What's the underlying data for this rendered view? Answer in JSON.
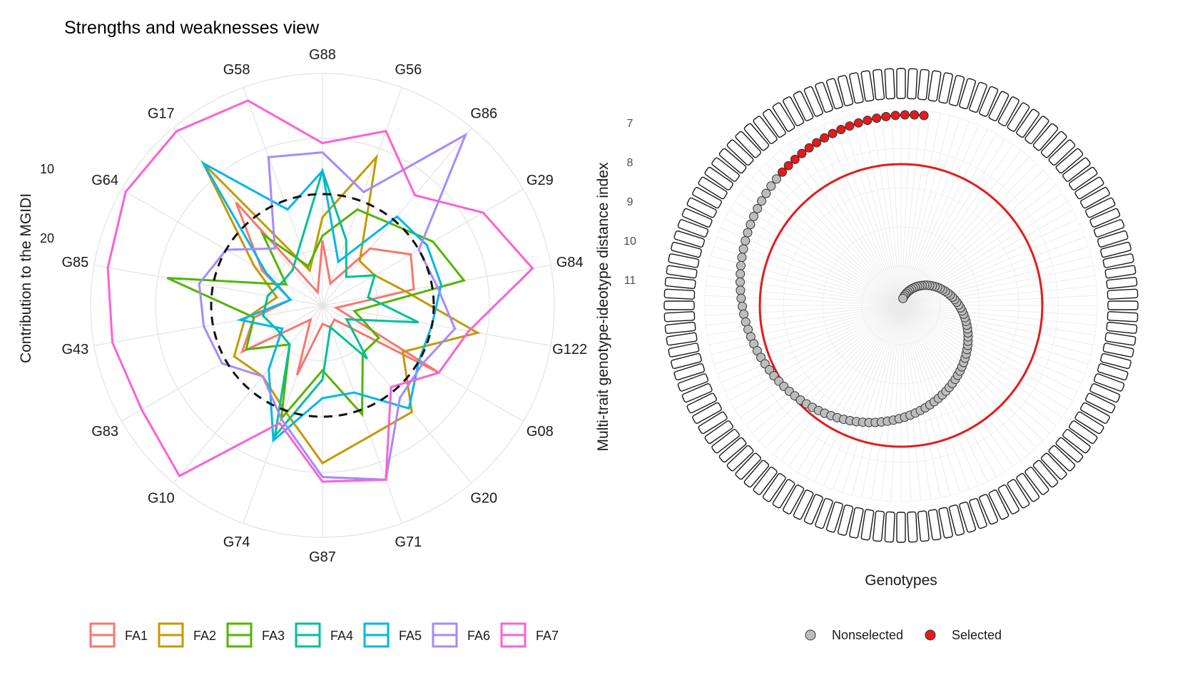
{
  "left_chart": {
    "title": "Strengths and weaknesses view",
    "ylabel": "Contribution to the MGIDI",
    "radial_ticks": [
      "10",
      "20"
    ]
  },
  "right_chart": {
    "xlabel": "Genotypes",
    "ylabel": "Multi-trait genotype-ideotype distance index",
    "radial_ticks": [
      "7",
      "8",
      "9",
      "10",
      "11"
    ],
    "legend": {
      "nonselected": "Nonselected",
      "selected": "Selected"
    }
  },
  "chart_data": [
    {
      "type": "radar",
      "title": "Strengths and weaknesses view",
      "ylabel": "Contribution to the MGIDI",
      "radial_ticks": [
        10,
        20
      ],
      "categories": [
        "G88",
        "G56",
        "G86",
        "G29",
        "G84",
        "G122",
        "G08",
        "G20",
        "G71",
        "G87",
        "G74",
        "G10",
        "G83",
        "G43",
        "G85",
        "G64",
        "G17",
        "G58"
      ],
      "series": [
        {
          "name": "FA1",
          "color": "#F8766D",
          "values": [
            0.28,
            0.1,
            0.32,
            0.44,
            0.4,
            0.06,
            0.58,
            0.08,
            0.1,
            0.08,
            0.32,
            0.08,
            0.4,
            0.3,
            0.14,
            0.3,
            0.58,
            0.06
          ]
        },
        {
          "name": "FA2",
          "color": "#C49A00",
          "values": [
            0.38,
            0.68,
            0.25,
            0.26,
            0.36,
            0.68,
            0.4,
            0.6,
            0.6,
            0.68,
            0.48,
            0.4,
            0.44,
            0.34,
            0.2,
            0.34,
            0.8,
            0.16
          ]
        },
        {
          "name": "FA3",
          "color": "#53B400",
          "values": [
            0.3,
            0.44,
            0.46,
            0.55,
            0.62,
            0.14,
            0.28,
            0.27,
            0.5,
            0.28,
            0.52,
            0.22,
            0.38,
            0.3,
            0.68,
            0.18,
            0.4,
            0.18
          ]
        },
        {
          "name": "FA4",
          "color": "#00C094",
          "values": [
            0.58,
            0.3,
            0.16,
            0.26,
            0.2,
            0.42,
            0.12,
            0.3,
            0.1,
            0.32,
            0.6,
            0.22,
            0.22,
            0.26,
            0.24,
            0.2,
            0.2,
            0.28
          ]
        },
        {
          "name": "FA5",
          "color": "#00B6EB",
          "values": [
            0.58,
            0.2,
            0.5,
            0.52,
            0.52,
            0.48,
            0.48,
            0.58,
            0.4,
            0.4,
            0.62,
            0.36,
            0.2,
            0.36,
            0.14,
            0.28,
            0.8,
            0.44
          ]
        },
        {
          "name": "FA6",
          "color": "#A58AFF",
          "values": [
            0.66,
            0.52,
            0.96,
            0.48,
            0.5,
            0.58,
            0.5,
            0.52,
            0.8,
            0.74,
            0.52,
            0.4,
            0.5,
            0.52,
            0.54,
            0.48,
            0.32,
            0.68
          ]
        },
        {
          "name": "FA7",
          "color": "#FB61D7",
          "values": [
            0.7,
            0.8,
            0.62,
            0.8,
            0.92,
            0.64,
            0.58,
            0.46,
            0.8,
            0.76,
            0.54,
            0.96,
            0.9,
            0.92,
            0.94,
            0.98,
            0.98,
            0.94
          ]
        }
      ],
      "reference_circle_relative_radius": 0.48
    },
    {
      "type": "radial_scatter",
      "xlabel": "Genotypes",
      "ylabel": "Multi-trait genotype-ideotype distance index",
      "radial_ticks": [
        7,
        8,
        9,
        10,
        11
      ],
      "selected_count": 18,
      "nonselected_count": 106,
      "legend": [
        "Nonselected",
        "Selected"
      ],
      "colors": {
        "selected": "#e41a1c",
        "nonselected": "#bdbdbd",
        "cutoff": "#e41a1c"
      }
    }
  ]
}
